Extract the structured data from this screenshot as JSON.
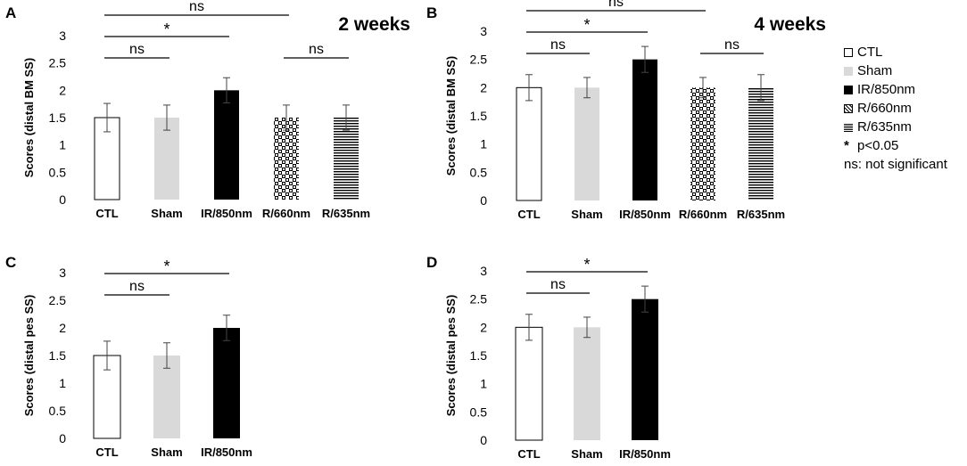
{
  "chart_data": [
    {
      "type": "bar",
      "panel": "A",
      "title": "2 weeks",
      "ylabel": "Scores (distal BM SS)",
      "ylim": [
        0,
        3
      ],
      "yticks": [
        "0",
        "0.5",
        "1",
        "1.5",
        "2",
        "2.5",
        "3"
      ],
      "categories": [
        "CTL",
        "Sham",
        "IR/850nm",
        "R/660nm",
        "R/635nm"
      ],
      "values": [
        1.5,
        1.5,
        2.0,
        1.5,
        1.5
      ],
      "errors": [
        0.26,
        0.23,
        0.23,
        0.23,
        0.23
      ],
      "comparisons": [
        {
          "from": 0,
          "to": 1,
          "label": "ns",
          "level": 0
        },
        {
          "from": 0,
          "to": 2,
          "label": "*",
          "level": 1
        },
        {
          "from": 0,
          "to": 3,
          "label": "ns",
          "level": 2
        },
        {
          "from": 3,
          "to": 4,
          "label": "ns",
          "level": 0
        }
      ]
    },
    {
      "type": "bar",
      "panel": "B",
      "title": "4 weeks",
      "ylabel": "Scores (distal BM SS)",
      "ylim": [
        0,
        3
      ],
      "yticks": [
        "0",
        "0.5",
        "1",
        "1.5",
        "2",
        "2.5",
        "3"
      ],
      "categories": [
        "CTL",
        "Sham",
        "IR/850nm",
        "R/660nm",
        "R/635nm"
      ],
      "values": [
        2.0,
        2.0,
        2.5,
        2.0,
        2.0
      ],
      "errors": [
        0.23,
        0.18,
        0.23,
        0.18,
        0.23
      ],
      "comparisons": [
        {
          "from": 0,
          "to": 1,
          "label": "ns",
          "level": 0
        },
        {
          "from": 0,
          "to": 2,
          "label": "*",
          "level": 1
        },
        {
          "from": 0,
          "to": 3,
          "label": "ns",
          "level": 2
        },
        {
          "from": 3,
          "to": 4,
          "label": "ns",
          "level": 0
        }
      ]
    },
    {
      "type": "bar",
      "panel": "C",
      "title": "",
      "ylabel": "Scores (distal pes SS)",
      "ylim": [
        0,
        3
      ],
      "yticks": [
        "0",
        "0.5",
        "1",
        "1.5",
        "2",
        "2.5",
        "3"
      ],
      "categories": [
        "CTL",
        "Sham",
        "IR/850nm"
      ],
      "values": [
        1.5,
        1.5,
        2.0
      ],
      "errors": [
        0.26,
        0.23,
        0.23
      ],
      "comparisons": [
        {
          "from": 0,
          "to": 1,
          "label": "ns",
          "level": 0
        },
        {
          "from": 0,
          "to": 2,
          "label": "*",
          "level": 1
        }
      ]
    },
    {
      "type": "bar",
      "panel": "D",
      "title": "",
      "ylabel": "Scores (distal pes SS)",
      "ylim": [
        0,
        3
      ],
      "yticks": [
        "0",
        "0.5",
        "1",
        "1.5",
        "2",
        "2.5",
        "3"
      ],
      "categories": [
        "CTL",
        "Sham",
        "IR/850nm"
      ],
      "values": [
        2.0,
        2.0,
        2.5
      ],
      "errors": [
        0.23,
        0.18,
        0.23
      ],
      "comparisons": [
        {
          "from": 0,
          "to": 1,
          "label": "ns",
          "level": 0
        },
        {
          "from": 0,
          "to": 2,
          "label": "*",
          "level": 1
        }
      ]
    }
  ],
  "legend": {
    "items": [
      {
        "label": "CTL",
        "style": "ctl"
      },
      {
        "label": "Sham",
        "style": "sham"
      },
      {
        "label": "IR/850nm",
        "style": "ir"
      },
      {
        "label": "R/660nm",
        "style": "r660"
      },
      {
        "label": "R/635nm",
        "style": "r635"
      }
    ],
    "notes": [
      {
        "symbol": "*",
        "text": "p<0.05"
      },
      {
        "symbol": "",
        "text": "ns: not significant"
      }
    ]
  },
  "colors": {
    "sham": "#d9d9d9",
    "ir": "#000000",
    "ctl": "#ffffff"
  }
}
